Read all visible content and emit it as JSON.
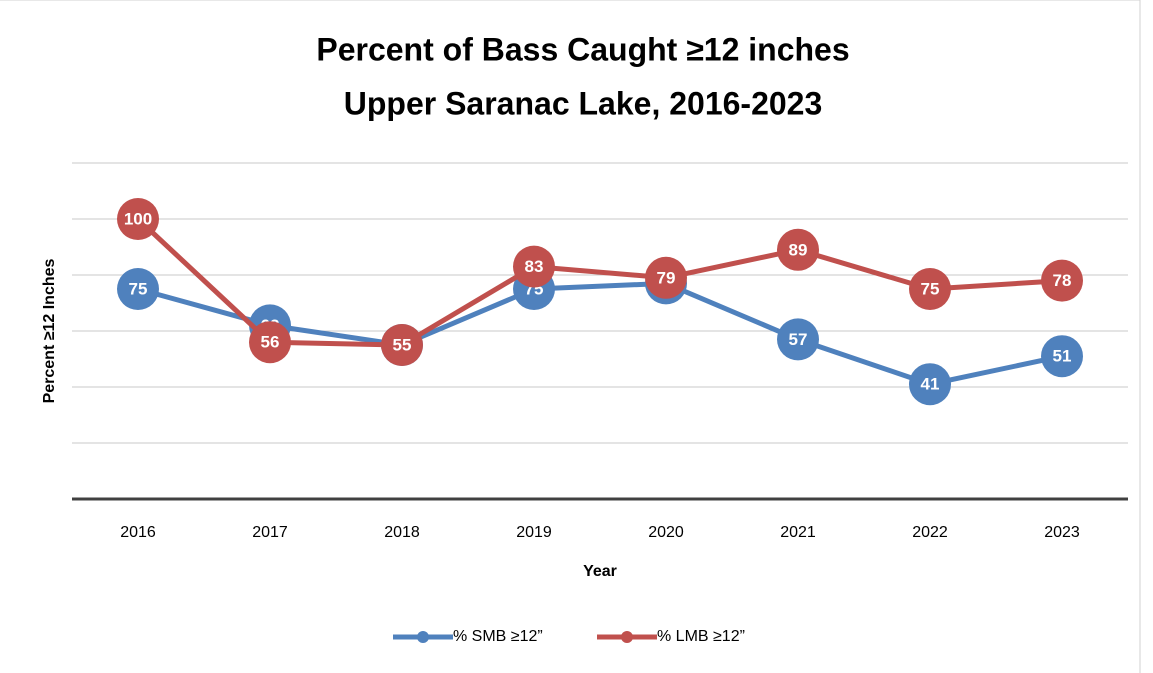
{
  "chart_data": {
    "type": "line",
    "title": "Percent of Bass Caught ≥12 inches",
    "subtitle": "Upper Saranac Lake, 2016-2023",
    "x_label": "Year",
    "y_label": "Percent  ≥12  Inches",
    "categories": [
      "2016",
      "2017",
      "2018",
      "2019",
      "2020",
      "2021",
      "2022",
      "2023"
    ],
    "series": [
      {
        "name": "% SMB ≥12”",
        "color": "#4f81bd",
        "values": [
          75,
          62,
          55,
          75,
          77,
          57,
          41,
          51
        ]
      },
      {
        "name": "% LMB ≥12”",
        "color": "#c0504d",
        "values": [
          100,
          56,
          55,
          83,
          79,
          89,
          75,
          78
        ]
      }
    ],
    "ylim": [
      0,
      120
    ],
    "yticks": [
      0,
      20,
      40,
      60,
      80,
      100,
      120
    ],
    "grid": true,
    "legend": "bottom"
  }
}
